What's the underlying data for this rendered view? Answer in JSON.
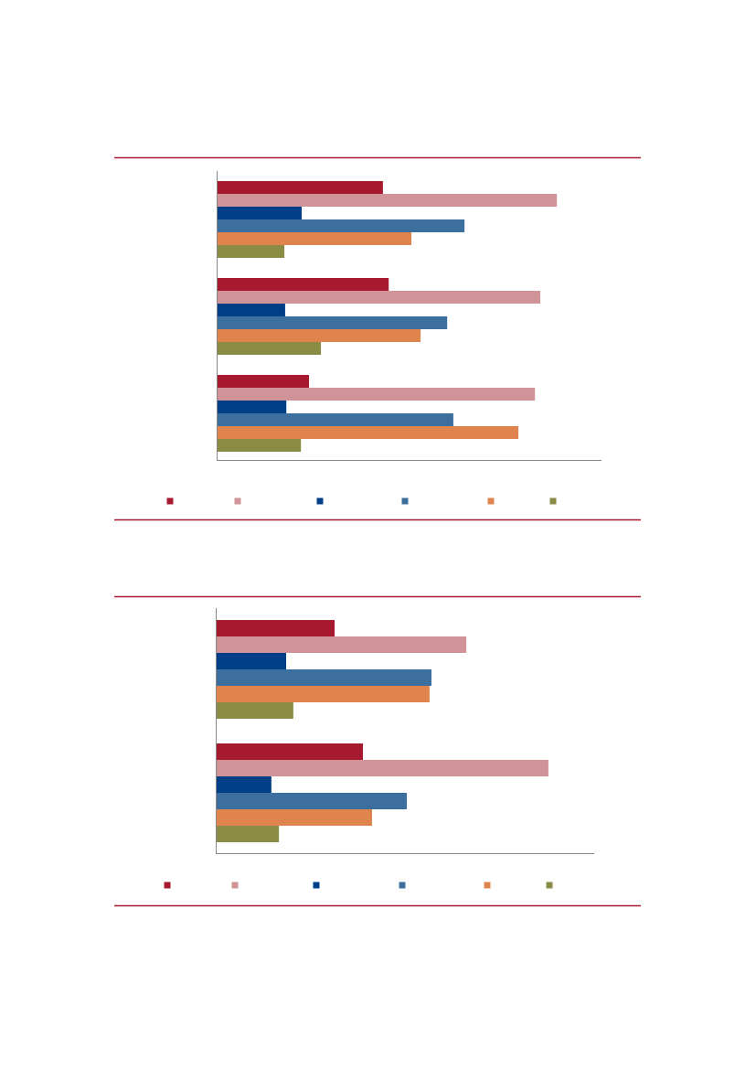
{
  "chart_data": [
    {
      "type": "bar",
      "orientation": "horizontal",
      "categories": [
        null,
        null,
        null
      ],
      "xlim": [
        0,
        100
      ],
      "series": [
        {
          "color": "#a6192e",
          "values": [
            43.2,
            44.7,
            24.0
          ]
        },
        {
          "color": "#cf9398",
          "values": [
            88.4,
            84.1,
            82.7
          ]
        },
        {
          "color": "#003f87",
          "values": [
            22.1,
            17.8,
            18.1
          ]
        },
        {
          "color": "#3d6f9e",
          "values": [
            64.4,
            59.9,
            61.5
          ]
        },
        {
          "color": "#e0844e",
          "values": [
            50.6,
            53.0,
            78.4
          ]
        },
        {
          "color": "#8a8b45",
          "values": [
            17.6,
            27.1,
            21.9
          ]
        }
      ]
    },
    {
      "type": "bar",
      "orientation": "horizontal",
      "categories": [
        null,
        null
      ],
      "xlim": [
        0,
        100
      ],
      "series": [
        {
          "color": "#a6192e",
          "values": [
            31.4,
            38.9
          ]
        },
        {
          "color": "#cf9398",
          "values": [
            66.2,
            87.9
          ]
        },
        {
          "color": "#003f87",
          "values": [
            18.6,
            14.7
          ]
        },
        {
          "color": "#3d6f9e",
          "values": [
            57.0,
            50.5
          ]
        },
        {
          "color": "#e0844e",
          "values": [
            56.5,
            41.3
          ]
        },
        {
          "color": "#8a8b45",
          "values": [
            20.5,
            16.7
          ]
        }
      ]
    }
  ]
}
